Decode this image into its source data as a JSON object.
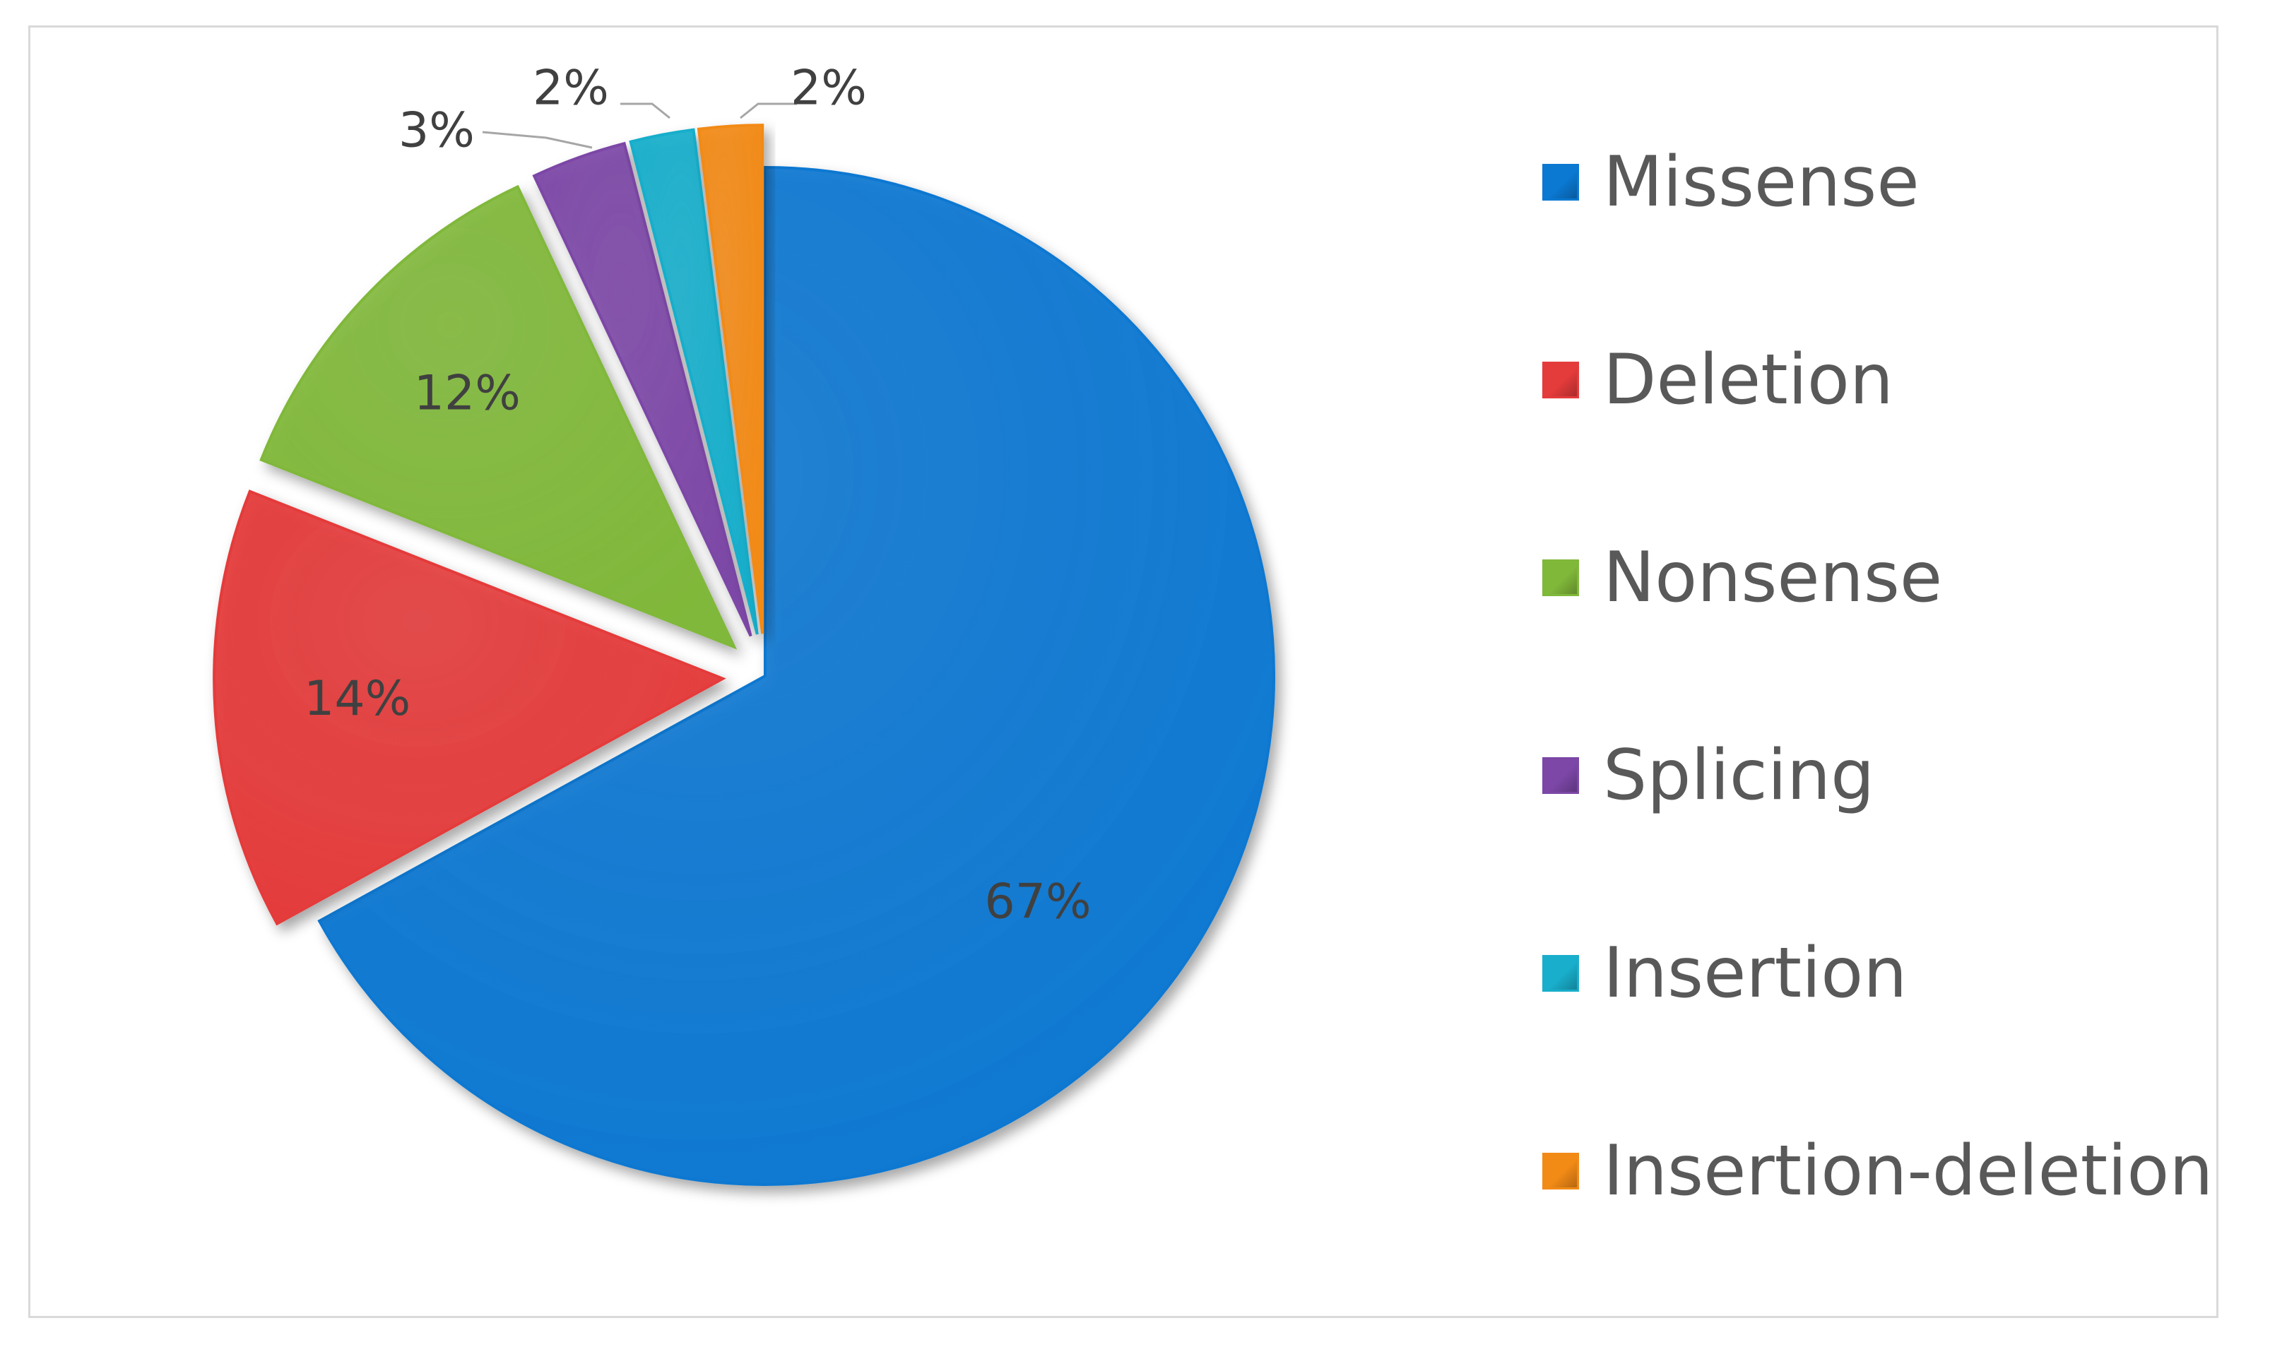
{
  "chart_data": {
    "type": "pie",
    "start": "top",
    "direction": "clockwise",
    "exploded": true,
    "legend_placement": "right",
    "slices": [
      {
        "label": "Missense",
        "value": 67,
        "display": "67%",
        "color": "#0b78d1"
      },
      {
        "label": "Deletion",
        "value": 14,
        "display": "14%",
        "color": "#e43b3b"
      },
      {
        "label": "Nonsense",
        "value": 12,
        "display": "12%",
        "color": "#80b83a"
      },
      {
        "label": "Splicing",
        "value": 3,
        "display": "3%",
        "color": "#7c47a6"
      },
      {
        "label": "Insertion",
        "value": 2,
        "display": "2%",
        "color": "#19aecb"
      },
      {
        "label": "Insertion-deletion",
        "value": 2,
        "display": "2%",
        "color": "#f28a16"
      }
    ]
  }
}
